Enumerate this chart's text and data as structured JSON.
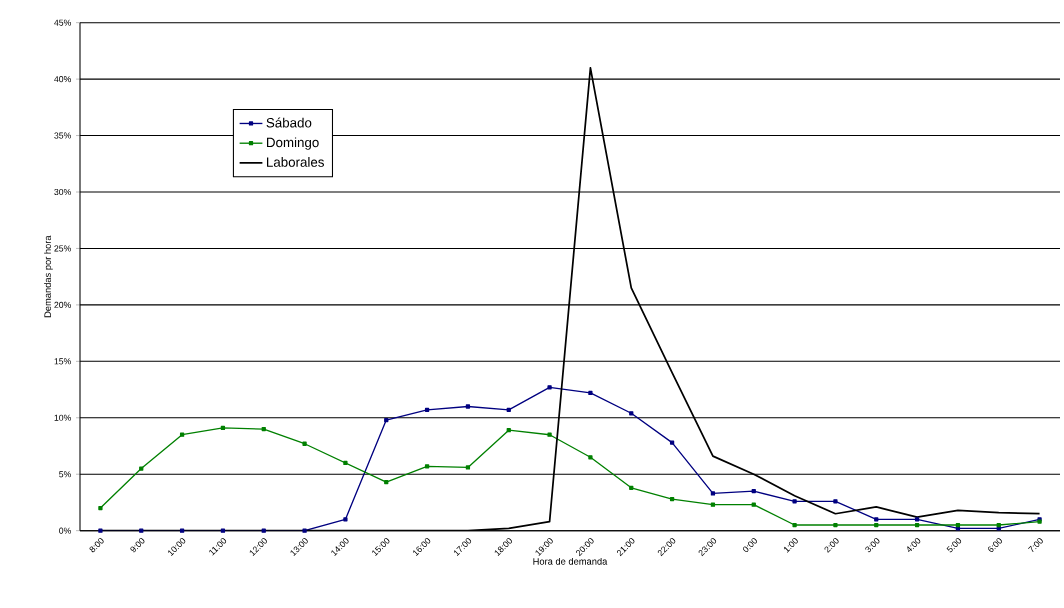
{
  "chart_data": {
    "type": "line",
    "xlabel": "Hora de demanda",
    "ylabel": "Demandas por hora",
    "categories": [
      "8:00",
      "9:00",
      "10:00",
      "11:00",
      "12:00",
      "13:00",
      "14:00",
      "15:00",
      "16:00",
      "17:00",
      "18:00",
      "19:00",
      "20:00",
      "21:00",
      "22:00",
      "23:00",
      "0:00",
      "1:00",
      "2:00",
      "3:00",
      "4:00",
      "5:00",
      "6:00",
      "7:00"
    ],
    "series": [
      {
        "name": "Sábado",
        "color": "#000080",
        "values": [
          0,
          0,
          0,
          0,
          0,
          0,
          1.0,
          9.8,
          10.7,
          11.0,
          10.7,
          12.7,
          12.2,
          10.4,
          7.8,
          3.3,
          3.5,
          2.6,
          2.6,
          1.0,
          1.0,
          0.2,
          0.2,
          1.0
        ]
      },
      {
        "name": "Domingo",
        "color": "#008000",
        "values": [
          2.0,
          5.5,
          8.5,
          9.1,
          9.0,
          7.7,
          6.0,
          4.3,
          5.7,
          5.6,
          8.9,
          8.5,
          6.5,
          3.8,
          2.8,
          2.3,
          2.3,
          0.5,
          0.5,
          0.5,
          0.5,
          0.5,
          0.5,
          0.8
        ]
      },
      {
        "name": "Laborales",
        "color": "#000000",
        "marker": "none",
        "values": [
          0,
          0,
          0,
          0,
          0,
          0,
          0,
          0,
          0,
          0,
          0.2,
          0.8,
          41.0,
          21.5,
          14.0,
          6.6,
          5.0,
          3.1,
          1.5,
          2.1,
          1.2,
          1.8,
          1.6,
          1.5
        ]
      }
    ],
    "ylim": [
      0,
      45
    ],
    "yticks": [
      {
        "value": 0,
        "label": "0%"
      },
      {
        "value": 5,
        "label": "5%"
      },
      {
        "value": 10,
        "label": "10%"
      },
      {
        "value": 15,
        "label": "15%"
      },
      {
        "value": 20,
        "label": "20%"
      },
      {
        "value": 25,
        "label": "25%"
      },
      {
        "value": 30,
        "label": "30%"
      },
      {
        "value": 35,
        "label": "35%"
      },
      {
        "value": 40,
        "label": "40%"
      },
      {
        "value": 45,
        "label": "45%"
      }
    ],
    "grid": "y",
    "legend": "top left",
    "marker": "square",
    "line_style": "solid"
  }
}
